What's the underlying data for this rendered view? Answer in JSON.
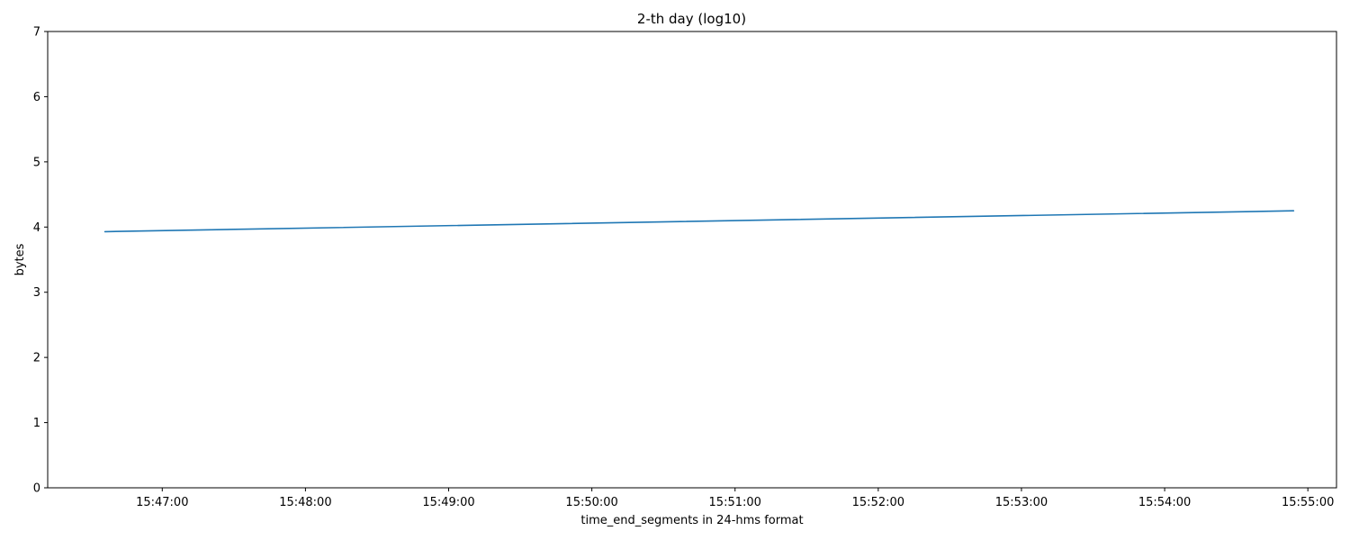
{
  "chart_data": {
    "type": "line",
    "title": "2-th day (log10)",
    "xlabel": "time_end_segments in 24-hms format",
    "ylabel": "bytes",
    "xlim": [
      "15:46:12",
      "15:55:12"
    ],
    "ylim": [
      0,
      7
    ],
    "x_ticks": [
      "15:47:00",
      "15:48:00",
      "15:49:00",
      "15:50:00",
      "15:51:00",
      "15:52:00",
      "15:53:00",
      "15:54:00",
      "15:55:00"
    ],
    "y_ticks": [
      "0",
      "1",
      "2",
      "3",
      "4",
      "5",
      "6",
      "7"
    ],
    "grid": false,
    "legend": "none",
    "series": [
      {
        "color": "#1f77b4",
        "x": [
          "15:46:36",
          "15:54:54"
        ],
        "y": [
          3.93,
          4.25
        ]
      }
    ]
  }
}
